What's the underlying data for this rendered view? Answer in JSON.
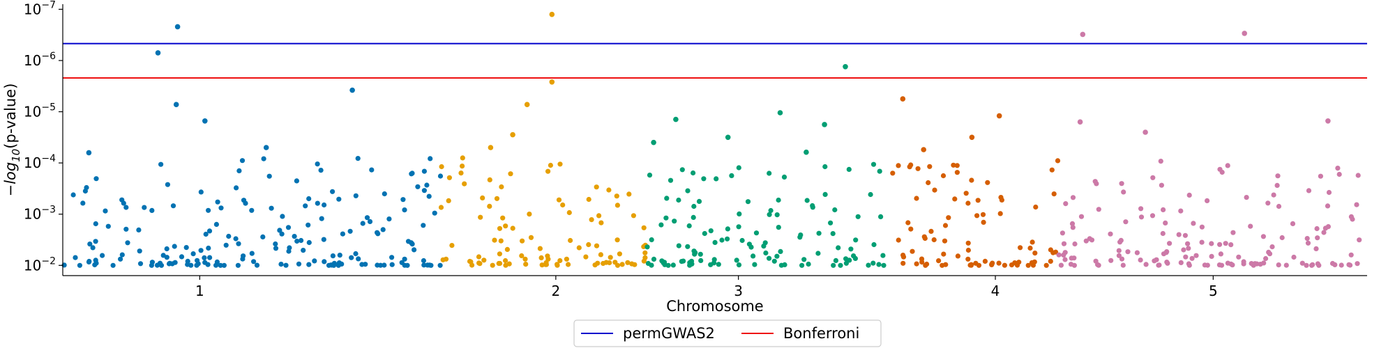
{
  "chart_data": {
    "type": "scatter",
    "title": "",
    "xlabel": "Chromosome",
    "ylabel_parts": {
      "prefix": "−",
      "log": "log",
      "base": "10",
      "suffix": "(p-value)"
    },
    "x_ticks": [
      {
        "label": "1",
        "x": 0.105
      },
      {
        "label": "2",
        "x": 0.378
      },
      {
        "label": "3",
        "x": 0.518
      },
      {
        "label": "4",
        "x": 0.715
      },
      {
        "label": "5",
        "x": 0.882
      }
    ],
    "xlim": [
      0,
      1
    ],
    "y_ticks": [
      {
        "mantissa": "10",
        "exp": "−7",
        "exponent": 7
      },
      {
        "mantissa": "10",
        "exp": "−6",
        "exponent": 6
      },
      {
        "mantissa": "10",
        "exp": "−5",
        "exponent": 5
      },
      {
        "mantissa": "10",
        "exp": "−4",
        "exponent": 4
      },
      {
        "mantissa": "10",
        "exp": "−3",
        "exponent": 3
      },
      {
        "mantissa": "10",
        "exp": "−2",
        "exponent": 2
      }
    ],
    "ylim_exponent": [
      1.8,
      7.1
    ],
    "thresholds": [
      {
        "name": "permGWAS2",
        "exponent": 6.33,
        "color": "#0000cc"
      },
      {
        "name": "Bonferroni",
        "exponent": 5.66,
        "color": "#ee1111"
      }
    ],
    "legend_placement": "below-center",
    "series": [
      {
        "chromosome": "1",
        "color": "#0072b2",
        "x_range": [
          0.0,
          0.29
        ],
        "highlights": [
          [
            0.088,
            6.66
          ],
          [
            0.073,
            6.15
          ],
          [
            0.087,
            5.14
          ],
          [
            0.222,
            5.42
          ],
          [
            0.109,
            4.82
          ],
          [
            0.02,
            4.2
          ],
          [
            0.156,
            4.3
          ]
        ]
      },
      {
        "chromosome": "2",
        "color": "#e69f00",
        "x_range": [
          0.29,
          0.447
        ],
        "highlights": [
          [
            0.375,
            6.9
          ],
          [
            0.375,
            5.58
          ],
          [
            0.356,
            5.14
          ],
          [
            0.345,
            4.55
          ],
          [
            0.328,
            4.3
          ]
        ]
      },
      {
        "chromosome": "3",
        "color": "#009e73",
        "x_range": [
          0.447,
          0.6
        ],
        "highlights": [
          [
            0.47,
            4.85
          ],
          [
            0.51,
            4.5
          ],
          [
            0.453,
            4.4
          ],
          [
            0.57,
            4.21
          ]
        ]
      },
      {
        "chromosome": "3b",
        "color": "#009e73",
        "x_range": [
          0.6,
          0.63
        ],
        "highlights": [
          [
            0.6,
            5.88
          ],
          [
            0.55,
            4.98
          ],
          [
            0.584,
            4.75
          ]
        ]
      },
      {
        "chromosome": "4",
        "color": "#d55e00",
        "x_range": [
          0.63,
          0.763
        ],
        "highlights": [
          [
            0.644,
            5.25
          ],
          [
            0.718,
            4.92
          ],
          [
            0.697,
            4.5
          ],
          [
            0.66,
            4.26
          ]
        ]
      },
      {
        "chromosome": "5",
        "color": "#cc79a7",
        "x_range": [
          0.763,
          1.0
        ],
        "highlights": [
          [
            0.782,
            6.51
          ],
          [
            0.906,
            6.53
          ],
          [
            0.78,
            4.8
          ],
          [
            0.97,
            4.82
          ],
          [
            0.83,
            4.6
          ]
        ]
      }
    ]
  }
}
